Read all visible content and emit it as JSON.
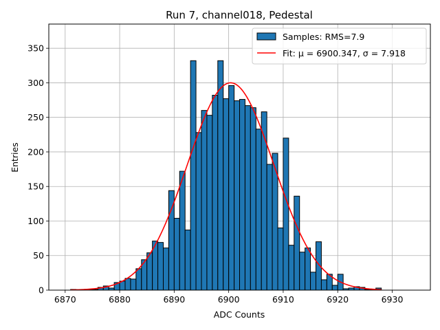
{
  "chart_data": {
    "type": "bar",
    "title": "Run 7, channel018, Pedestal",
    "xlabel": "ADC Counts",
    "ylabel": "Entries",
    "xlim": [
      6867,
      6937
    ],
    "ylim": [
      0,
      385
    ],
    "xticks": [
      6870,
      6880,
      6890,
      6900,
      6910,
      6920,
      6930
    ],
    "yticks": [
      0,
      50,
      100,
      150,
      200,
      250,
      300,
      350
    ],
    "grid": true,
    "legend_position": "top-right",
    "bin_width": 1,
    "series": [
      {
        "name": "Samples: RMS=7.9",
        "kind": "histogram",
        "color": "#1f77b4",
        "edge_color": "#000000",
        "bin_left_edges": [
          6871,
          6872,
          6873,
          6874,
          6875,
          6876,
          6877,
          6878,
          6879,
          6880,
          6881,
          6882,
          6883,
          6884,
          6885,
          6886,
          6887,
          6888,
          6889,
          6890,
          6891,
          6892,
          6893,
          6894,
          6895,
          6896,
          6897,
          6898,
          6899,
          6900,
          6901,
          6902,
          6903,
          6904,
          6905,
          6906,
          6907,
          6908,
          6909,
          6910,
          6911,
          6912,
          6913,
          6914,
          6915,
          6916,
          6917,
          6918,
          6919,
          6920,
          6921,
          6922,
          6923,
          6924,
          6925,
          6926,
          6927
        ],
        "values": [
          1,
          0,
          0,
          1,
          1,
          4,
          6,
          3,
          11,
          13,
          17,
          16,
          31,
          44,
          54,
          71,
          69,
          61,
          144,
          104,
          172,
          87,
          332,
          228,
          260,
          253,
          282,
          332,
          277,
          296,
          274,
          276,
          267,
          264,
          233,
          258,
          182,
          198,
          90,
          220,
          65,
          136,
          55,
          61,
          26,
          70,
          15,
          23,
          7,
          23,
          2,
          3,
          5,
          4,
          1,
          1,
          3
        ]
      },
      {
        "name": "Fit: μ = 6900.347, σ = 7.918",
        "kind": "gaussian-fit",
        "color": "#ff0000",
        "mu": 6900.347,
        "sigma": 7.918,
        "amplitude": 300,
        "x_range": [
          6871,
          6928
        ]
      }
    ]
  }
}
